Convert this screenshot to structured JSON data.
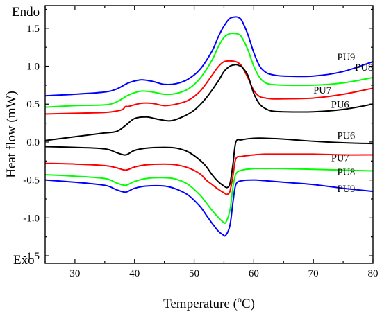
{
  "chart_data": {
    "type": "line",
    "xlabel": "Temperature (",
    "xlabel_sup": "o",
    "xlabel_suffix": "C)",
    "ylabel": "Heat flow (mW)",
    "xlim": [
      25,
      80
    ],
    "ylim": [
      -1.6,
      1.8
    ],
    "xticks": [
      30,
      40,
      50,
      60,
      70,
      80
    ],
    "yticks": [
      1.5,
      1.0,
      0.5,
      0.0,
      -0.5,
      -1.0,
      -1.5
    ],
    "ytick_labels": [
      "1.5",
      "1.0",
      "0.5",
      "0.0",
      "-0.5",
      "-1.0",
      "-1.5"
    ],
    "corner_labels": {
      "top": "Endo",
      "bottom": "Exo"
    },
    "grid": false,
    "series": [
      {
        "name": "PU9",
        "color": "#0000ff",
        "label_at": [
          74,
          1.08
        ],
        "x": [
          25,
          30,
          35,
          37,
          39,
          41,
          43,
          45,
          47,
          49,
          51,
          53,
          54,
          55,
          56,
          57,
          57.5,
          58,
          59,
          60,
          61,
          62,
          63,
          65,
          70,
          75,
          80
        ],
        "y": [
          0.61,
          0.63,
          0.66,
          0.7,
          0.78,
          0.82,
          0.8,
          0.76,
          0.77,
          0.83,
          0.96,
          1.2,
          1.38,
          1.53,
          1.63,
          1.65,
          1.64,
          1.6,
          1.42,
          1.18,
          1.0,
          0.92,
          0.89,
          0.87,
          0.87,
          0.93,
          1.06
        ]
      },
      {
        "name": "PU8",
        "color": "#00ff00",
        "label_at": [
          77,
          0.94
        ],
        "x": [
          25,
          30,
          35,
          37,
          39,
          41,
          43,
          45,
          47,
          49,
          51,
          53,
          54,
          55,
          56,
          57,
          57.5,
          58,
          59,
          60,
          61,
          62,
          63,
          65,
          70,
          75,
          80
        ],
        "y": [
          0.46,
          0.48,
          0.49,
          0.53,
          0.62,
          0.67,
          0.66,
          0.63,
          0.64,
          0.7,
          0.84,
          1.08,
          1.25,
          1.38,
          1.43,
          1.43,
          1.42,
          1.38,
          1.22,
          1.0,
          0.85,
          0.78,
          0.76,
          0.75,
          0.75,
          0.78,
          0.85
        ]
      },
      {
        "name": "PU7",
        "color": "#ff0000",
        "label_at": [
          70,
          0.64
        ],
        "x": [
          25,
          30,
          35,
          37,
          38,
          38.5,
          39,
          41,
          43,
          45,
          47,
          49,
          51,
          53,
          54,
          55,
          56,
          57,
          57.5,
          58,
          59,
          60,
          61,
          62,
          63,
          65,
          70,
          75,
          80
        ],
        "y": [
          0.37,
          0.38,
          0.39,
          0.41,
          0.43,
          0.47,
          0.47,
          0.51,
          0.51,
          0.48,
          0.5,
          0.55,
          0.67,
          0.88,
          0.99,
          1.06,
          1.07,
          1.06,
          1.04,
          1.0,
          0.85,
          0.68,
          0.6,
          0.58,
          0.57,
          0.57,
          0.58,
          0.63,
          0.71
        ]
      },
      {
        "name": "PU6",
        "color": "#000000",
        "label_at": [
          73,
          0.45
        ],
        "x": [
          25,
          30,
          33,
          35,
          37,
          38.5,
          40,
          42,
          44,
          46,
          48,
          50,
          52,
          54,
          55,
          56,
          57,
          57.5,
          58,
          59,
          60,
          61,
          62,
          63,
          65,
          70,
          75,
          80
        ],
        "y": [
          0.02,
          0.07,
          0.1,
          0.12,
          0.14,
          0.22,
          0.31,
          0.33,
          0.3,
          0.28,
          0.33,
          0.42,
          0.58,
          0.8,
          0.93,
          1.0,
          1.02,
          1.01,
          0.99,
          0.88,
          0.64,
          0.5,
          0.44,
          0.41,
          0.4,
          0.4,
          0.43,
          0.5
        ]
      },
      {
        "name": "PU6",
        "color": "#000000",
        "label_at": [
          74,
          0.04
        ],
        "x": [
          25,
          30,
          35,
          37,
          38.5,
          40,
          42,
          45,
          47,
          49,
          51,
          52,
          53,
          54,
          55,
          55.5,
          56,
          56.5,
          57,
          58,
          60,
          62,
          65,
          70,
          75,
          80
        ],
        "y": [
          -0.06,
          -0.07,
          -0.09,
          -0.14,
          -0.17,
          -0.11,
          -0.08,
          -0.07,
          -0.08,
          -0.13,
          -0.24,
          -0.32,
          -0.43,
          -0.52,
          -0.58,
          -0.6,
          -0.55,
          -0.3,
          0.0,
          0.03,
          0.05,
          0.05,
          0.04,
          0.01,
          -0.01,
          -0.02
        ]
      },
      {
        "name": "PU7",
        "color": "#ff0000",
        "label_at": [
          73,
          -0.25
        ],
        "x": [
          25,
          30,
          35,
          37,
          38.5,
          40,
          42,
          45,
          47,
          49,
          51,
          52,
          53,
          54,
          55,
          55.5,
          56,
          56.5,
          57,
          58,
          60,
          62,
          65,
          70,
          75,
          80
        ],
        "y": [
          -0.28,
          -0.29,
          -0.31,
          -0.34,
          -0.37,
          -0.33,
          -0.3,
          -0.29,
          -0.3,
          -0.34,
          -0.42,
          -0.5,
          -0.56,
          -0.62,
          -0.67,
          -0.69,
          -0.65,
          -0.45,
          -0.22,
          -0.19,
          -0.17,
          -0.16,
          -0.16,
          -0.16,
          -0.17,
          -0.17
        ]
      },
      {
        "name": "PU8",
        "color": "#00ff00",
        "label_at": [
          74,
          -0.44
        ],
        "x": [
          25,
          30,
          35,
          37,
          38.5,
          40,
          42,
          45,
          47,
          49,
          51,
          52,
          53,
          54,
          54.8,
          55.3,
          56,
          56.5,
          57,
          58,
          60,
          62,
          65,
          70,
          75,
          80
        ],
        "y": [
          -0.43,
          -0.45,
          -0.48,
          -0.54,
          -0.57,
          -0.52,
          -0.48,
          -0.47,
          -0.49,
          -0.56,
          -0.7,
          -0.8,
          -0.9,
          -0.99,
          -1.05,
          -1.06,
          -0.9,
          -0.6,
          -0.42,
          -0.37,
          -0.35,
          -0.35,
          -0.35,
          -0.36,
          -0.37,
          -0.38
        ]
      },
      {
        "name": "PU9",
        "color": "#0000ff",
        "label_at": [
          74,
          -0.66
        ],
        "x": [
          25,
          30,
          35,
          37,
          38.5,
          40,
          42,
          45,
          47,
          49,
          51,
          52,
          53,
          54,
          54.8,
          55.3,
          56,
          56.5,
          57,
          58,
          60,
          62,
          65,
          70,
          75,
          80
        ],
        "y": [
          -0.5,
          -0.53,
          -0.57,
          -0.63,
          -0.66,
          -0.61,
          -0.58,
          -0.58,
          -0.62,
          -0.7,
          -0.85,
          -0.96,
          -1.07,
          -1.17,
          -1.22,
          -1.23,
          -1.1,
          -0.8,
          -0.56,
          -0.51,
          -0.5,
          -0.51,
          -0.53,
          -0.56,
          -0.61,
          -0.65
        ]
      }
    ]
  }
}
